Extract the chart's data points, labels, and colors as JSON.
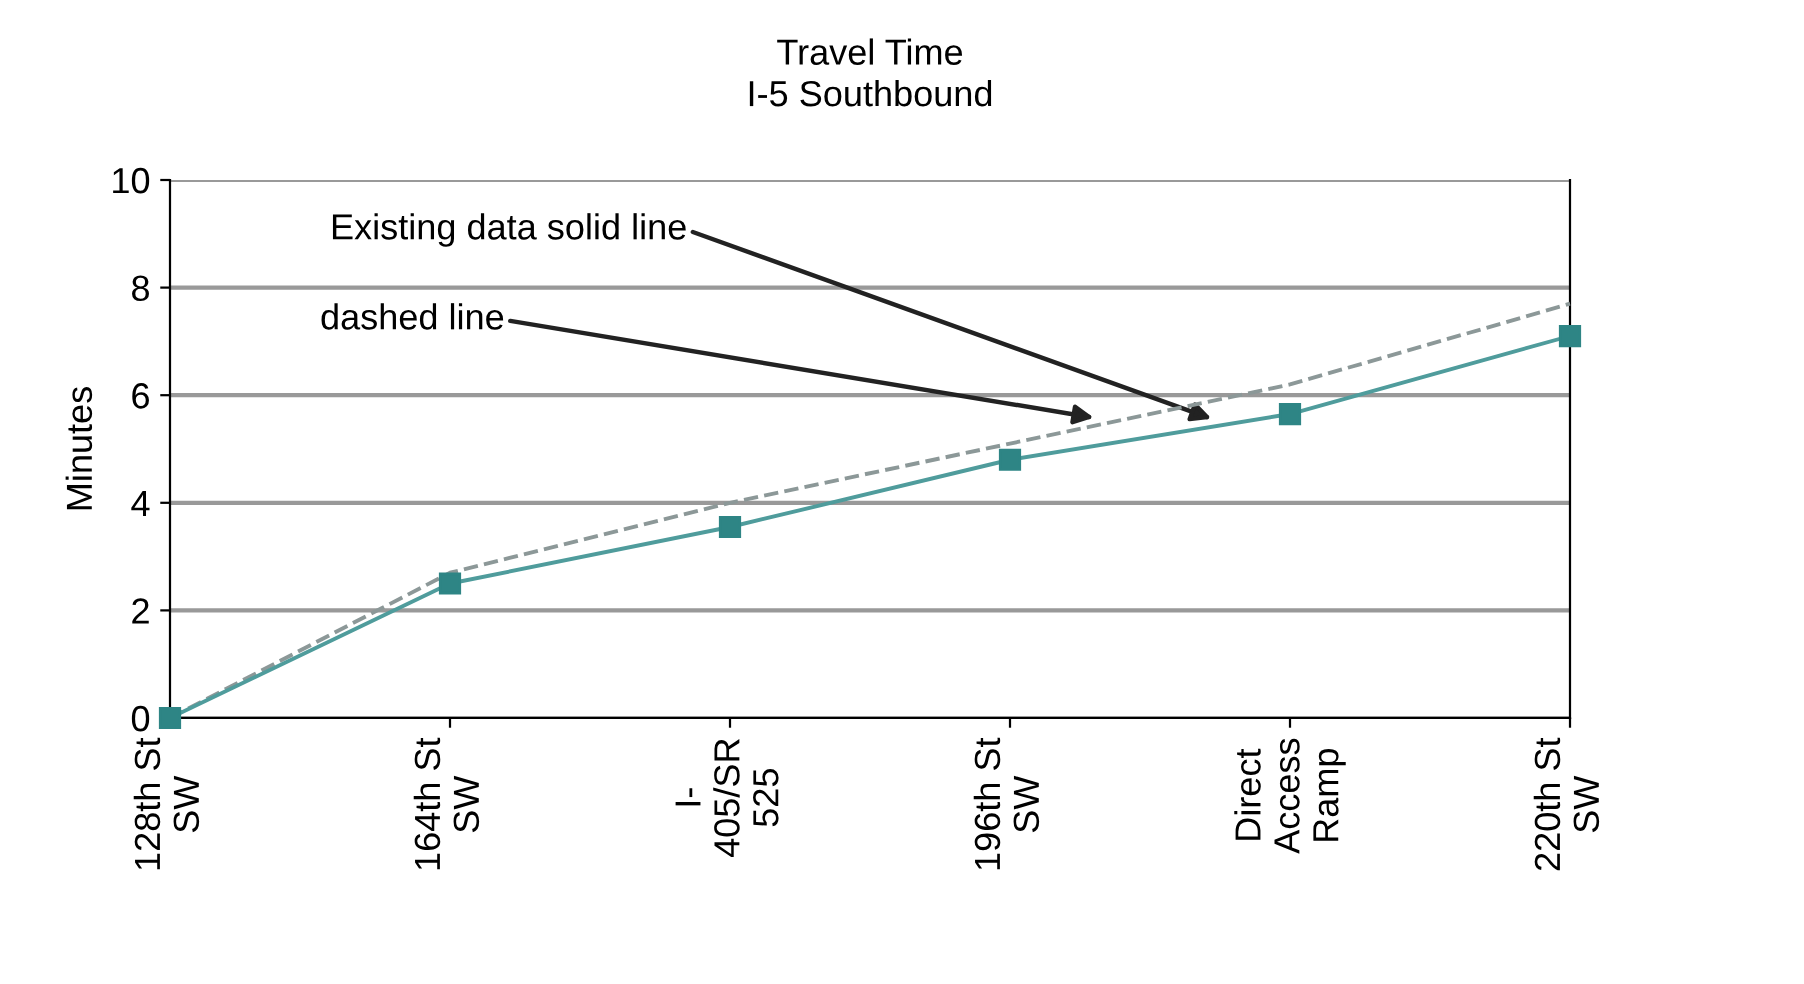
{
  "chart_data": {
    "type": "line",
    "title": "Travel Time\nI-5 Southbound",
    "ylabel": "Minutes",
    "categories": [
      "128th St\nSW",
      "164th St\nSW",
      "I-\n405/SR\n525",
      "196th St\nSW",
      "Direct\nAccess\nRamp",
      "220th St\nSW"
    ],
    "series": [
      {
        "color": "#4f9c9c",
        "marker": "square",
        "line_style": "solid",
        "values": [
          0,
          2.5,
          3.55,
          4.8,
          5.65,
          7.1
        ]
      },
      {
        "color": "#8c9898",
        "marker": "none",
        "line_style": "dashed",
        "values": [
          0,
          2.7,
          4.0,
          5.1,
          6.2,
          7.7
        ]
      }
    ],
    "annotations": [
      "Existing data solid line",
      "dashed line"
    ],
    "ylim": [
      0,
      10
    ],
    "yticks": [
      0,
      2,
      4,
      6,
      8,
      10
    ],
    "grid": "y"
  }
}
